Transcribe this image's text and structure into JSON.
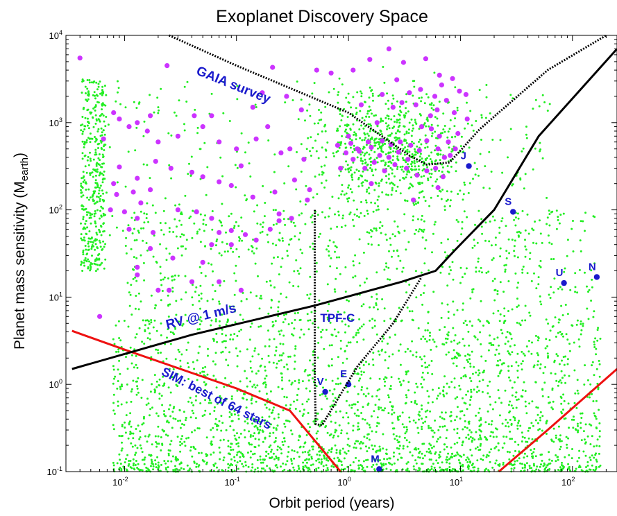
{
  "chart_data": {
    "type": "scatter",
    "title": "Exoplanet Discovery Space",
    "xlabel": "Orbit period (years)",
    "ylabel_main": "Planet mass sensitivity (M",
    "ylabel_sub": "earth",
    "ylabel_close": ")",
    "xscale": "log",
    "yscale": "log",
    "xlim": [
      0.003,
      250
    ],
    "ylim": [
      0.1,
      10000
    ],
    "x_ticks": [
      {
        "base": "10",
        "exp": "-2",
        "value": 0.01
      },
      {
        "base": "10",
        "exp": "-1",
        "value": 0.1
      },
      {
        "base": "10",
        "exp": "0",
        "value": 1
      },
      {
        "base": "10",
        "exp": "1",
        "value": 10
      },
      {
        "base": "10",
        "exp": "2",
        "value": 100
      }
    ],
    "y_ticks": [
      {
        "base": "10",
        "exp": "-1",
        "value": 0.1
      },
      {
        "base": "10",
        "exp": "0",
        "value": 1
      },
      {
        "base": "10",
        "exp": "1",
        "value": 10
      },
      {
        "base": "10",
        "exp": "2",
        "value": 100
      },
      {
        "base": "10",
        "exp": "3",
        "value": 1000
      },
      {
        "base": "10",
        "exp": "4",
        "value": 10000
      }
    ],
    "colors": {
      "simulated": "#22ee22",
      "known": "#cc33ff",
      "solar_system": "#1a1acc",
      "rv": "#000000",
      "sim": "#ee1111",
      "gaia": "#000000",
      "tpf": "#000000"
    },
    "curves": {
      "rv_1ms": [
        [
          0.0034,
          1.5
        ],
        [
          0.04,
          3.7
        ],
        [
          0.5,
          8.0
        ],
        [
          3.0,
          15
        ],
        [
          6.0,
          20
        ],
        [
          9.0,
          35
        ],
        [
          20,
          100
        ],
        [
          50,
          700
        ],
        [
          250,
          7000
        ]
      ],
      "gaia": [
        [
          0.025,
          10000
        ],
        [
          0.1,
          4500
        ],
        [
          1.0,
          1300
        ],
        [
          3.5,
          420
        ],
        [
          5.0,
          330
        ],
        [
          8.0,
          350
        ],
        [
          15,
          850
        ],
        [
          60,
          4000
        ],
        [
          200,
          10000
        ]
      ],
      "tpf_c": [
        [
          0.5,
          100
        ],
        [
          0.5,
          1.2
        ],
        [
          0.51,
          0.35
        ],
        [
          0.58,
          0.34
        ],
        [
          1.2,
          1.6
        ],
        [
          2.5,
          5
        ],
        [
          4.5,
          17
        ]
      ],
      "sim_left": [
        [
          0.0034,
          4.1
        ],
        [
          0.01,
          2.5
        ],
        [
          0.1,
          0.9
        ],
        [
          0.3,
          0.5
        ],
        [
          0.85,
          0.1
        ]
      ],
      "sim_right": [
        [
          22,
          0.1
        ],
        [
          60,
          0.3
        ],
        [
          250,
          1.5
        ]
      ]
    },
    "annotations": [
      {
        "text": "GAIA survey",
        "x": 0.043,
        "y": 3600,
        "rotate": 22,
        "size": 19
      },
      {
        "text": "RV @ 1 m/s",
        "x": 0.024,
        "y": 4.3,
        "rotate": -14,
        "size": 19
      },
      {
        "text": "TPF-C",
        "x": 0.56,
        "y": 5.2,
        "rotate": 0,
        "size": 17
      },
      {
        "text": "SIM: best of 64 stars",
        "x": 0.021,
        "y": 1.3,
        "rotate": 27,
        "size": 18
      }
    ],
    "solar_system": [
      {
        "name": "V",
        "x": 0.62,
        "y": 0.82
      },
      {
        "name": "E",
        "x": 1.0,
        "y": 1.0
      },
      {
        "name": "M",
        "x": 1.88,
        "y": 0.107
      },
      {
        "name": "J",
        "x": 11.9,
        "y": 318
      },
      {
        "name": "S",
        "x": 29.5,
        "y": 95
      },
      {
        "name": "U",
        "x": 84,
        "y": 14.5
      },
      {
        "name": "N",
        "x": 165,
        "y": 17
      }
    ],
    "known_planets": [
      [
        0.004,
        5500
      ],
      [
        0.024,
        4500
      ],
      [
        0.17,
        2200
      ],
      [
        0.28,
        2000
      ],
      [
        1.55,
        5300
      ],
      [
        3.1,
        4900
      ],
      [
        4.9,
        5400
      ],
      [
        2.3,
        7000
      ],
      [
        6.5,
        3500
      ],
      [
        8.5,
        3200
      ],
      [
        0.7,
        3700
      ],
      [
        0.38,
        1400
      ],
      [
        0.008,
        1300
      ],
      [
        0.017,
        1200
      ],
      [
        0.042,
        1200
      ],
      [
        0.06,
        1200
      ],
      [
        0.14,
        1500
      ],
      [
        0.19,
        900
      ],
      [
        0.3,
        500
      ],
      [
        0.21,
        4300
      ],
      [
        0.52,
        4000
      ],
      [
        1.1,
        4000
      ],
      [
        2.7,
        3100
      ],
      [
        3.5,
        2200
      ],
      [
        4.4,
        2400
      ],
      [
        5.9,
        2000
      ],
      [
        6.8,
        2700
      ],
      [
        7.5,
        1800
      ],
      [
        9.8,
        2300
      ],
      [
        11.2,
        2100
      ],
      [
        2.0,
        2100
      ],
      [
        3.0,
        1700
      ],
      [
        4.0,
        1600
      ],
      [
        5.4,
        1200
      ],
      [
        6.2,
        1400
      ],
      [
        8.8,
        1300
      ],
      [
        11.5,
        1100
      ],
      [
        1.3,
        1600
      ],
      [
        1.8,
        1000
      ],
      [
        2.5,
        1500
      ],
      [
        1.0,
        700
      ],
      [
        1.2,
        500
      ],
      [
        1.5,
        600
      ],
      [
        1.9,
        420
      ],
      [
        2.3,
        400
      ],
      [
        2.8,
        460
      ],
      [
        3.4,
        380
      ],
      [
        4.5,
        900
      ],
      [
        5.5,
        850
      ],
      [
        6.5,
        700
      ],
      [
        7.8,
        600
      ],
      [
        9.0,
        500
      ],
      [
        9.5,
        750
      ],
      [
        0.85,
        300
      ],
      [
        1.1,
        380
      ],
      [
        1.4,
        300
      ],
      [
        1.7,
        350
      ],
      [
        2.1,
        280
      ],
      [
        2.6,
        330
      ],
      [
        3.3,
        300
      ],
      [
        4.1,
        250
      ],
      [
        6.0,
        300
      ],
      [
        0.8,
        550
      ],
      [
        0.95,
        450
      ],
      [
        1.05,
        580
      ],
      [
        1.25,
        470
      ],
      [
        1.6,
        520
      ],
      [
        2.0,
        620
      ],
      [
        2.4,
        560
      ],
      [
        2.9,
        600
      ],
      [
        3.6,
        550
      ],
      [
        4.3,
        480
      ],
      [
        5.0,
        620
      ],
      [
        6.3,
        500
      ],
      [
        7.2,
        400
      ],
      [
        8.1,
        420
      ],
      [
        3.8,
        130
      ],
      [
        6.3,
        180
      ],
      [
        5.0,
        280
      ],
      [
        7.0,
        240
      ],
      [
        1.6,
        200
      ],
      [
        0.0065,
        650
      ],
      [
        0.009,
        1100
      ],
      [
        0.011,
        900
      ],
      [
        0.013,
        1000
      ],
      [
        0.016,
        800
      ],
      [
        0.02,
        600
      ],
      [
        0.03,
        700
      ],
      [
        0.05,
        900
      ],
      [
        0.07,
        600
      ],
      [
        0.1,
        500
      ],
      [
        0.15,
        650
      ],
      [
        0.25,
        450
      ],
      [
        0.4,
        380
      ],
      [
        0.009,
        310
      ],
      [
        0.008,
        200
      ],
      [
        0.0085,
        150
      ],
      [
        0.012,
        160
      ],
      [
        0.013,
        230
      ],
      [
        0.014,
        120
      ],
      [
        0.017,
        170
      ],
      [
        0.0075,
        100
      ],
      [
        0.01,
        95
      ],
      [
        0.013,
        80
      ],
      [
        0.019,
        360
      ],
      [
        0.026,
        300
      ],
      [
        0.04,
        270
      ],
      [
        0.05,
        240
      ],
      [
        0.07,
        210
      ],
      [
        0.09,
        190
      ],
      [
        0.11,
        320
      ],
      [
        0.14,
        140
      ],
      [
        0.22,
        160
      ],
      [
        0.24,
        90
      ],
      [
        0.31,
        80
      ],
      [
        0.33,
        220
      ],
      [
        0.43,
        130
      ],
      [
        0.45,
        170
      ],
      [
        0.011,
        60
      ],
      [
        0.018,
        55
      ],
      [
        0.03,
        100
      ],
      [
        0.044,
        95
      ],
      [
        0.06,
        80
      ],
      [
        0.07,
        55
      ],
      [
        0.09,
        58
      ],
      [
        0.12,
        52
      ],
      [
        0.15,
        45
      ],
      [
        0.2,
        60
      ],
      [
        0.24,
        75
      ],
      [
        0.017,
        36
      ],
      [
        0.027,
        28
      ],
      [
        0.05,
        25
      ],
      [
        0.06,
        40
      ],
      [
        0.09,
        40
      ],
      [
        0.013,
        22
      ],
      [
        0.025,
        12
      ],
      [
        0.04,
        15
      ],
      [
        0.07,
        15
      ],
      [
        0.11,
        12
      ],
      [
        0.006,
        6
      ],
      [
        0.013,
        18
      ],
      [
        0.02,
        12
      ]
    ]
  }
}
